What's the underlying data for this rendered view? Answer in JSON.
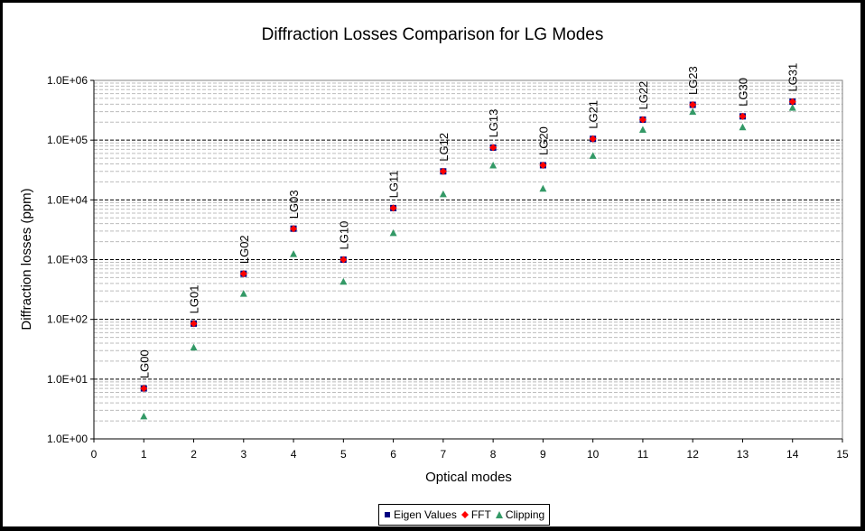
{
  "chart_data": {
    "type": "scatter",
    "title": "Diffraction Losses Comparison for LG Modes",
    "xlabel": "Optical modes",
    "ylabel": "Diffraction losses (ppm)",
    "xlim": [
      0,
      15
    ],
    "ylim": [
      1,
      1000000
    ],
    "yscale": "log",
    "x_ticks": [
      "0",
      "1",
      "2",
      "3",
      "4",
      "5",
      "6",
      "7",
      "8",
      "9",
      "10",
      "11",
      "12",
      "13",
      "14",
      "15"
    ],
    "y_ticks": [
      "1.0E+00",
      "1.0E+01",
      "1.0E+02",
      "1.0E+03",
      "1.0E+04",
      "1.0E+05",
      "1.0E+06"
    ],
    "grid": true,
    "legend_position": "bottom-center",
    "x": [
      1,
      2,
      3,
      4,
      5,
      6,
      7,
      8,
      9,
      10,
      11,
      12,
      13,
      14
    ],
    "point_labels": [
      "LG00",
      "LG01",
      "LG02",
      "LG03",
      "LG10",
      "LG11",
      "LG12",
      "LG13",
      "LG20",
      "LG21",
      "LG22",
      "LG23",
      "LG30",
      "LG31"
    ],
    "series": [
      {
        "name": "Eigen Values",
        "marker": "square",
        "color": "#000080",
        "values": [
          7,
          85,
          580,
          3300,
          1000,
          7300,
          30000,
          75000,
          38000,
          105000,
          220000,
          390000,
          250000,
          440000
        ]
      },
      {
        "name": "FFT",
        "marker": "diamond",
        "color": "#ff0000",
        "values": [
          7,
          85,
          580,
          3300,
          1000,
          7300,
          30000,
          75000,
          38000,
          105000,
          220000,
          390000,
          250000,
          440000
        ]
      },
      {
        "name": "Clipping",
        "marker": "triangle",
        "color": "#339966",
        "values": [
          2.4,
          34,
          270,
          1250,
          430,
          2800,
          12500,
          38000,
          15500,
          55000,
          150000,
          300000,
          165000,
          350000
        ]
      }
    ]
  }
}
